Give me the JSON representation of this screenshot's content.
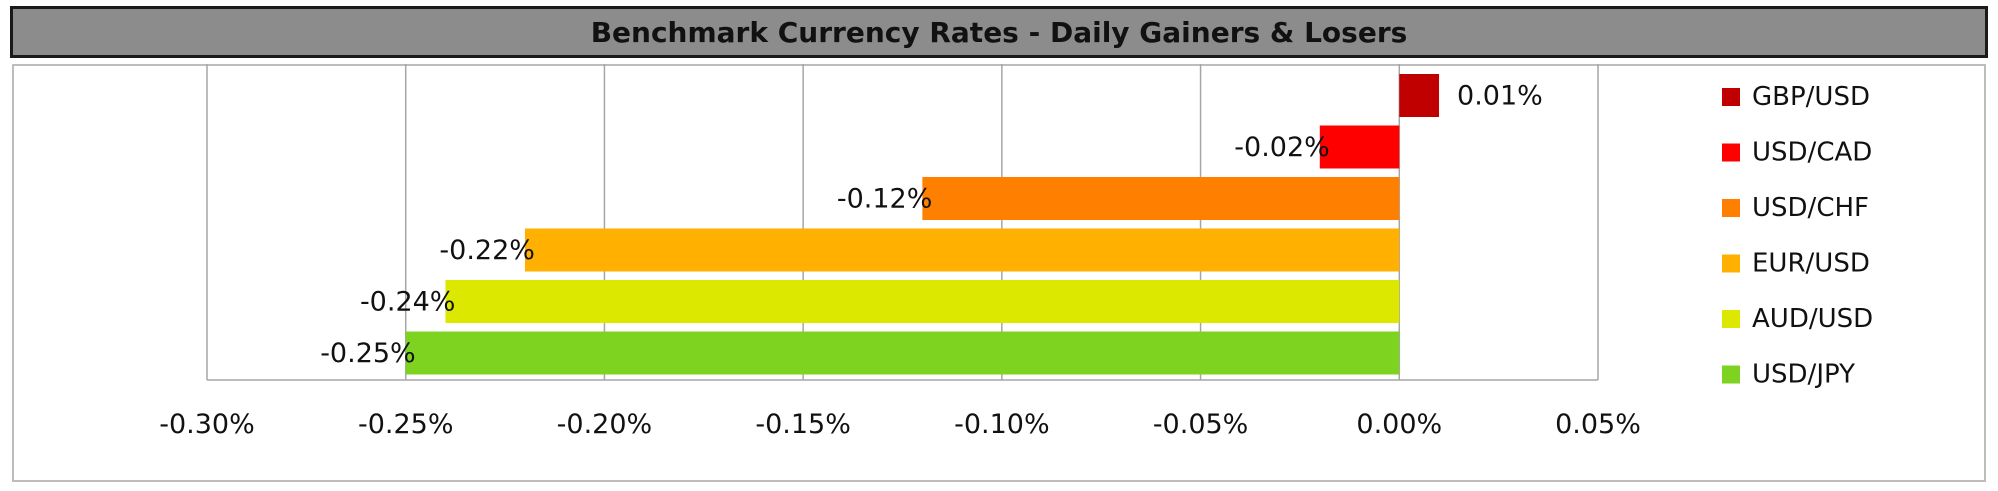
{
  "chart_data": {
    "type": "bar",
    "orientation": "horizontal",
    "title": "Benchmark Currency Rates - Daily Gainers & Losers",
    "categories": [
      "GBP/USD",
      "USD/CAD",
      "USD/CHF",
      "EUR/USD",
      "AUD/USD",
      "USD/JPY"
    ],
    "values": [
      0.01,
      -0.02,
      -0.12,
      -0.22,
      -0.24,
      -0.25
    ],
    "data_labels": [
      "0.01%",
      "-0.02%",
      "-0.12%",
      "-0.22%",
      "-0.24%",
      "-0.25%"
    ],
    "colors": [
      "#c00000",
      "#ff0000",
      "#ff8000",
      "#ffb000",
      "#dde800",
      "#7ed321"
    ],
    "xlim": [
      -0.3,
      0.05
    ],
    "xticks": [
      -0.3,
      -0.25,
      -0.2,
      -0.15,
      -0.1,
      -0.05,
      0.0,
      0.05
    ],
    "xtick_labels": [
      "-0.30%",
      "-0.25%",
      "-0.20%",
      "-0.15%",
      "-0.10%",
      "-0.05%",
      "0.00%",
      "0.05%"
    ],
    "grid": "vertical",
    "legend_position": "right",
    "xlabel": "",
    "ylabel": ""
  }
}
